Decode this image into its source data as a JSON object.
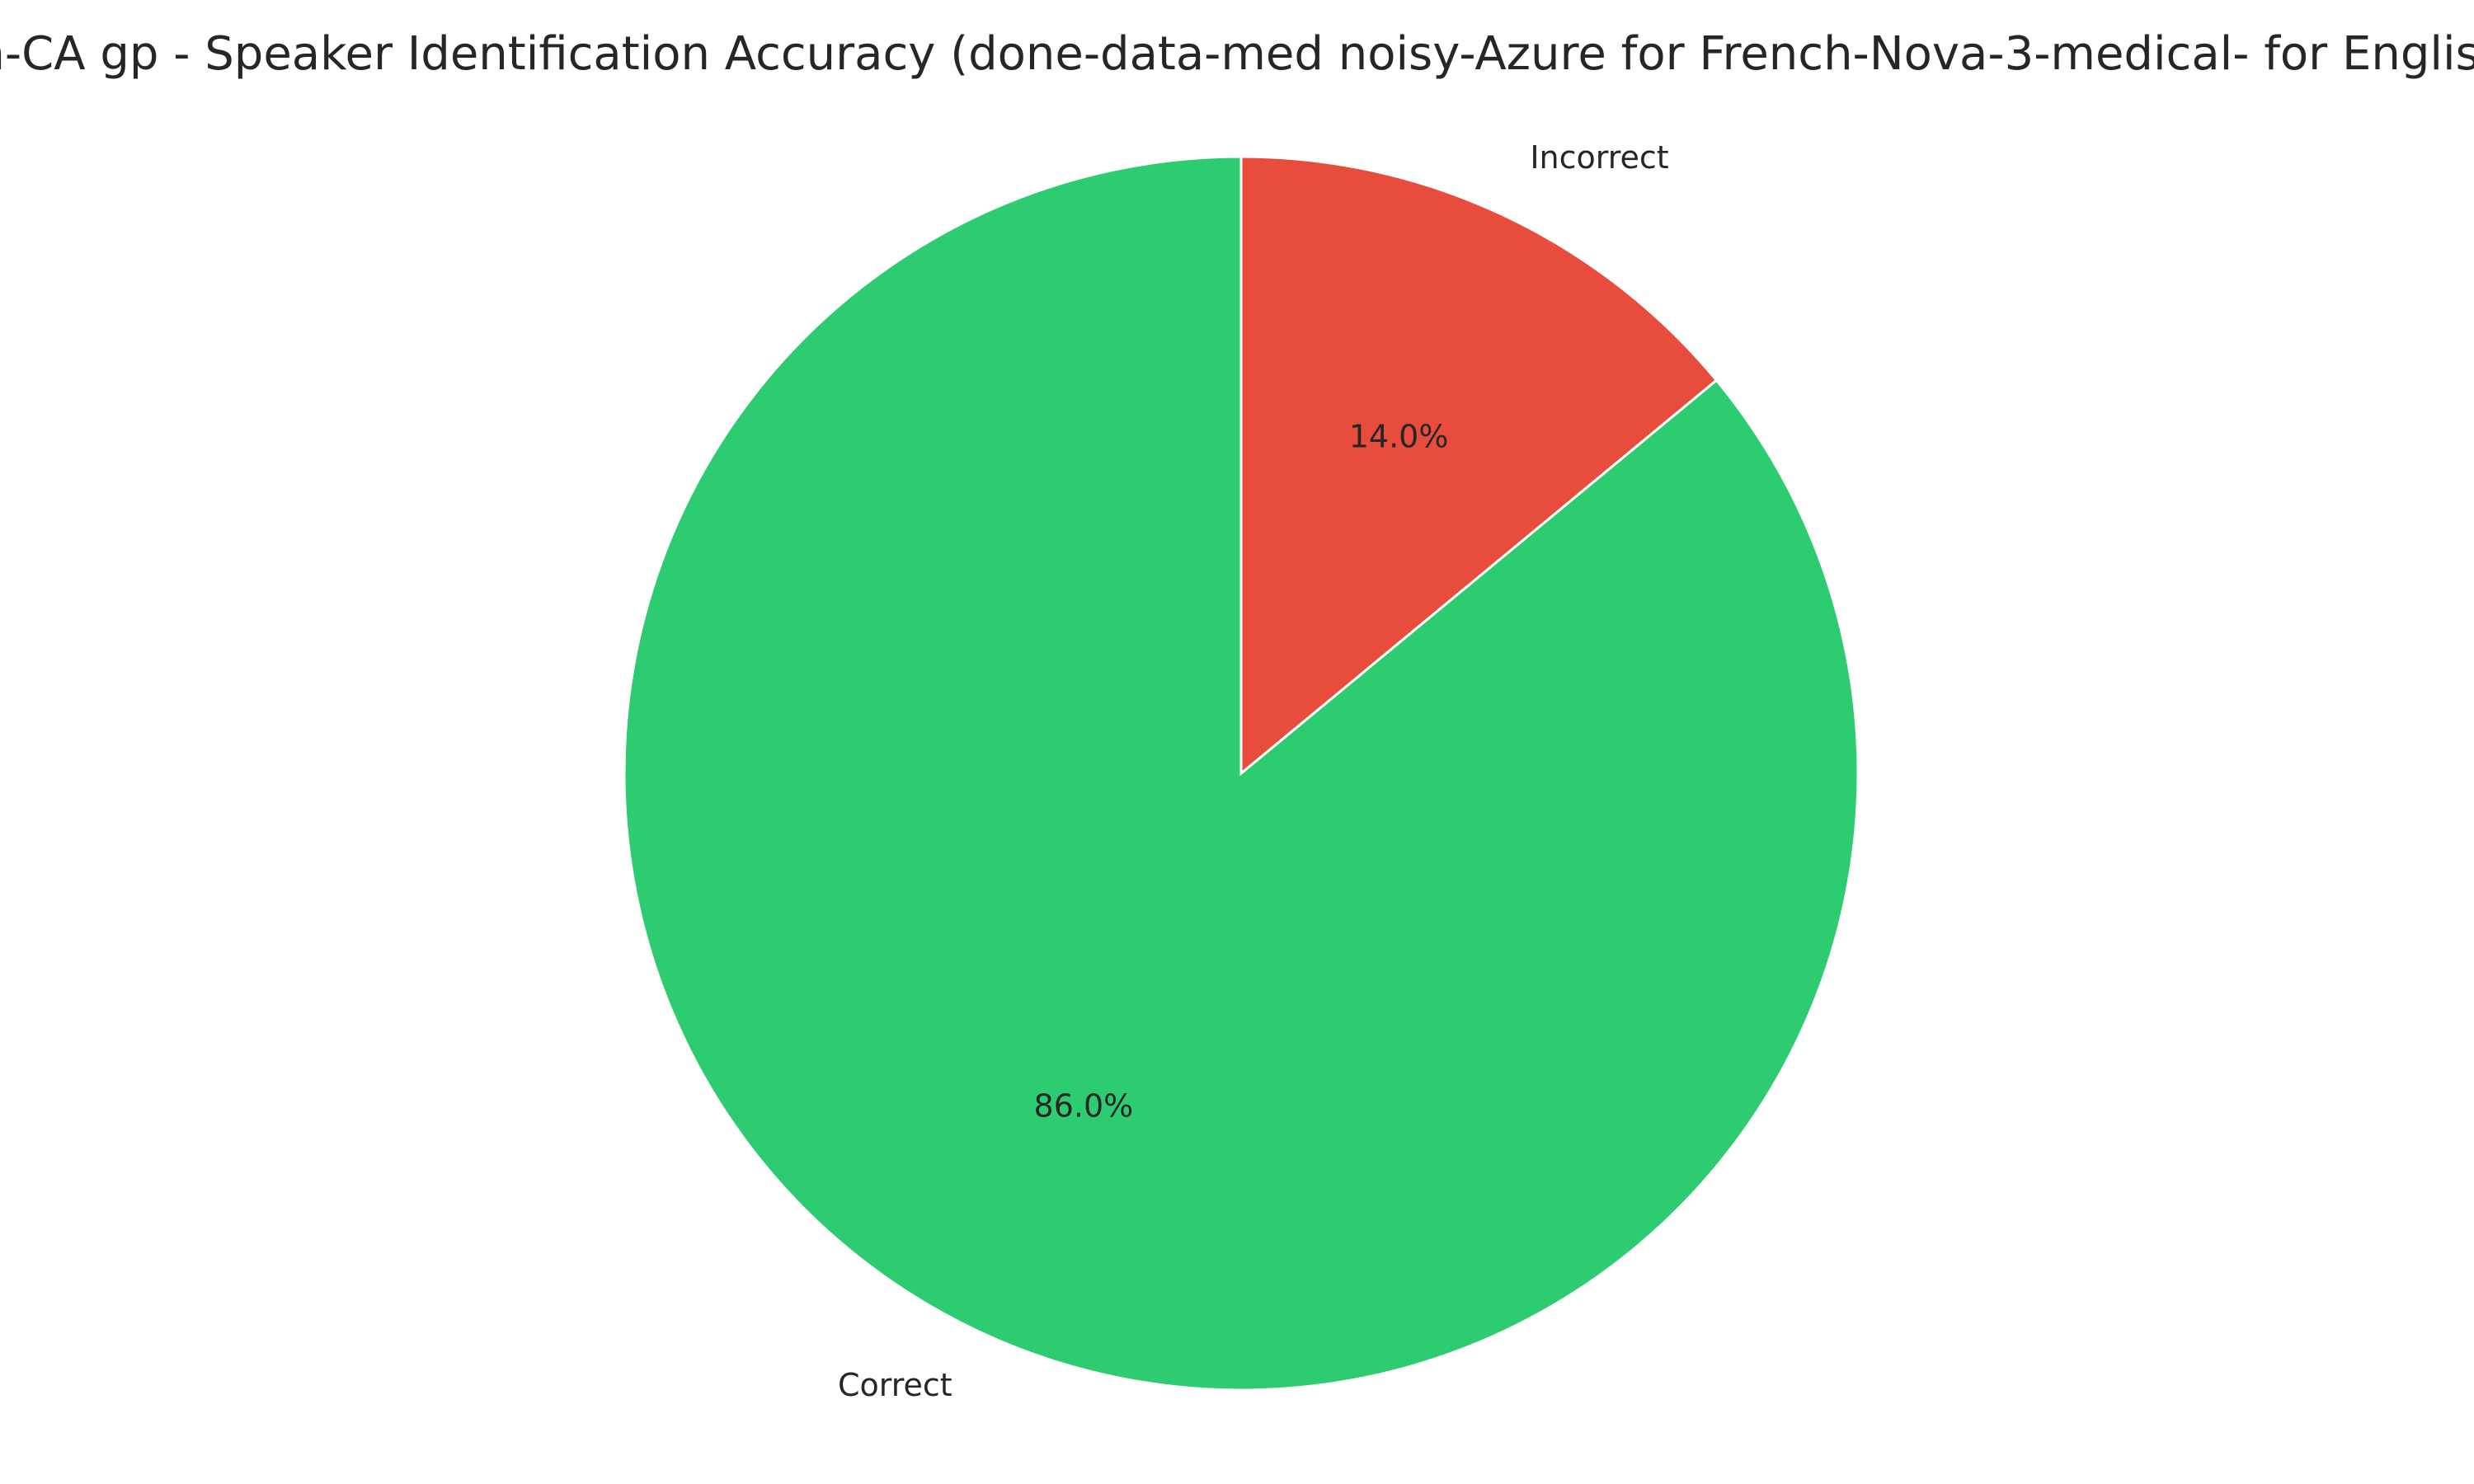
{
  "chart_data": {
    "type": "pie",
    "title": "en-CA gp - Speaker Identification Accuracy (done-data-med noisy-Azure for French-Nova-3-medical- for English)",
    "categories": [
      "Correct",
      "Incorrect"
    ],
    "values": [
      86.0,
      14.0
    ],
    "value_labels": [
      "86.0%",
      "14.0%"
    ],
    "colors": [
      "#2ecc71",
      "#e74c3c"
    ],
    "start_angle_degrees": 90,
    "direction": "counterclockwise",
    "legend": "none"
  }
}
